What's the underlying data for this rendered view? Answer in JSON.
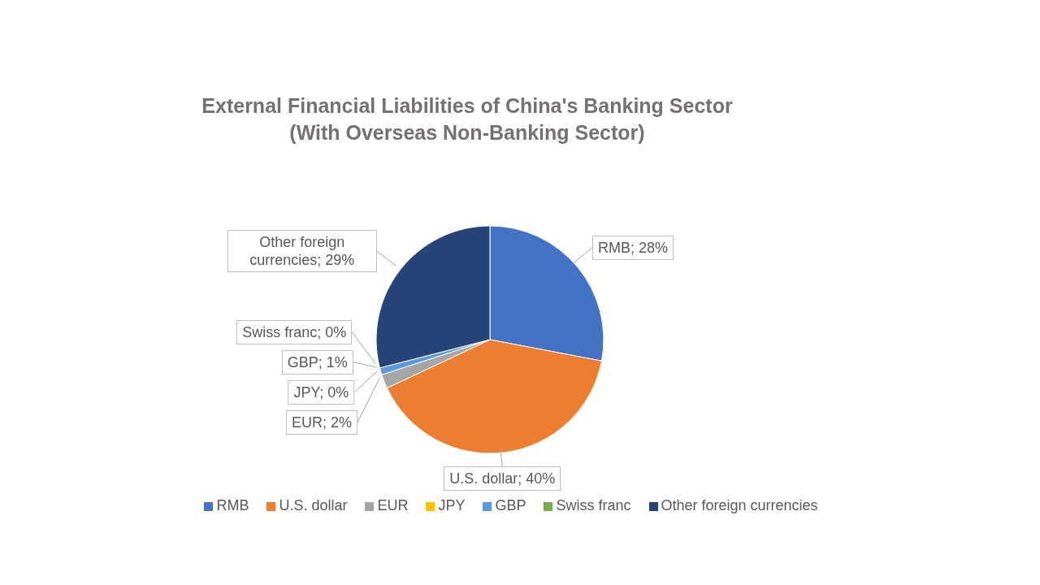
{
  "chart_data": {
    "type": "pie",
    "title": "External Financial Liabilities of China's Banking Sector\n(With Overseas Non-Banking Sector)",
    "categories": [
      "RMB",
      "U.S. dollar",
      "EUR",
      "JPY",
      "GBP",
      "Swiss franc",
      "Other foreign currencies"
    ],
    "values": [
      28,
      40,
      2,
      0,
      1,
      0,
      29
    ],
    "colors": [
      "#4472c4",
      "#ed7d31",
      "#a5a5a5",
      "#ffc000",
      "#5b9bd5",
      "#70ad47",
      "#264478"
    ],
    "value_labels": [
      "RMB; 28%",
      "U.S. dollar; 40%",
      "EUR; 2%",
      "JPY; 0%",
      "GBP; 1%",
      "Swiss franc; 0%",
      "Other foreign currencies; 29%"
    ],
    "legend": "bottom"
  }
}
